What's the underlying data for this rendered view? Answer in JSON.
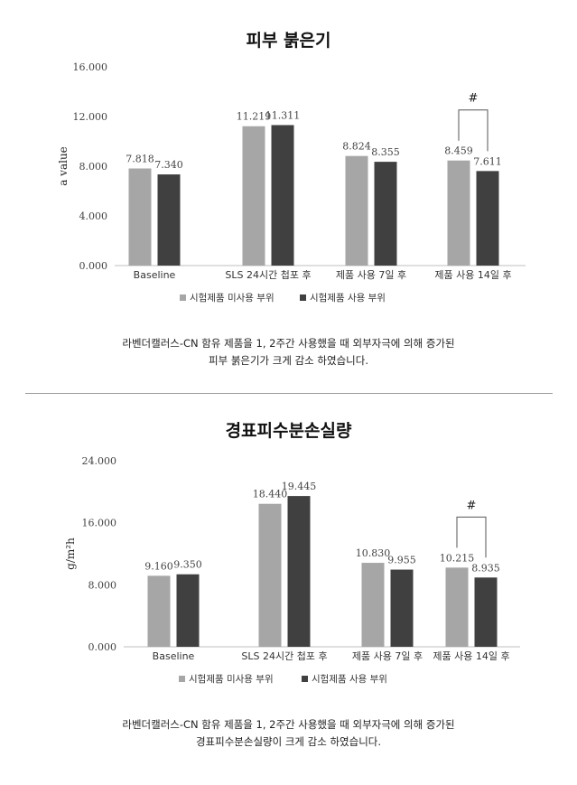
{
  "charts": [
    {
      "title": "피부 붉은기",
      "caption_lines": [
        "라벤더캘러스-CN 함유 제품을 1, 2주간 사용했을 때 외부자극에 의해 증가된",
        "피부 붉은기가 크게 감소 하였습니다."
      ]
    },
    {
      "title": "경표피수분손실량",
      "caption_lines": [
        "라벤더캘러스-CN 함유 제품을 1, 2주간 사용했을 때 외부자극에 의해 증가된",
        "경표피수분손실량이 크게 감소 하였습니다."
      ]
    }
  ],
  "colors": {
    "untreated": "#a6a6a6",
    "treated": "#404040",
    "axis": "#bfbfbf"
  },
  "chart_data": [
    {
      "type": "bar",
      "title": "피부 붉은기",
      "ylabel": "a value",
      "xlabel": "",
      "categories": [
        "Baseline",
        "SLS 24시간 첩포 후",
        "제품 사용 7일 후",
        "제품 사용 14일 후"
      ],
      "series": [
        {
          "name": "시험제품 미사용 부위",
          "values": [
            7.818,
            11.219,
            8.824,
            8.459
          ],
          "labels": [
            "7.818",
            "11.219",
            "8.824",
            "8.459"
          ]
        },
        {
          "name": "시험제품 사용 부위",
          "values": [
            7.34,
            11.311,
            8.355,
            7.611
          ],
          "labels": [
            "7.340",
            "11.311",
            "8.355",
            "7.611"
          ]
        }
      ],
      "ylim": [
        0,
        16
      ],
      "yticks": [
        "0.000",
        "4.000",
        "8.000",
        "12.000",
        "16.000"
      ],
      "ytick_values": [
        0,
        4,
        8,
        12,
        16
      ],
      "annotation": {
        "text": "#",
        "category_index": 3
      },
      "grid": false,
      "legend": "bottom"
    },
    {
      "type": "bar",
      "title": "경표피수분손실량",
      "ylabel": "g/m²h",
      "xlabel": "",
      "categories": [
        "Baseline",
        "SLS 24시간 첩포 후",
        "제품 사용 7일 후",
        "제품 사용 14일 후"
      ],
      "series": [
        {
          "name": "시험제품 미사용 부위",
          "values": [
            9.16,
            18.44,
            10.83,
            10.215
          ],
          "labels": [
            "9.160",
            "18.440",
            "10.830",
            "10.215"
          ]
        },
        {
          "name": "시험제품 사용 부위",
          "values": [
            9.35,
            19.445,
            9.955,
            8.935
          ],
          "labels": [
            "9.350",
            "19.445",
            "9.955",
            "8.935"
          ]
        }
      ],
      "ylim": [
        0,
        24
      ],
      "yticks": [
        "0.000",
        "8.000",
        "16.000",
        "24.000"
      ],
      "ytick_values": [
        0,
        8,
        16,
        24
      ],
      "annotation": {
        "text": "#",
        "category_index": 3
      },
      "grid": false,
      "legend": "bottom"
    }
  ]
}
